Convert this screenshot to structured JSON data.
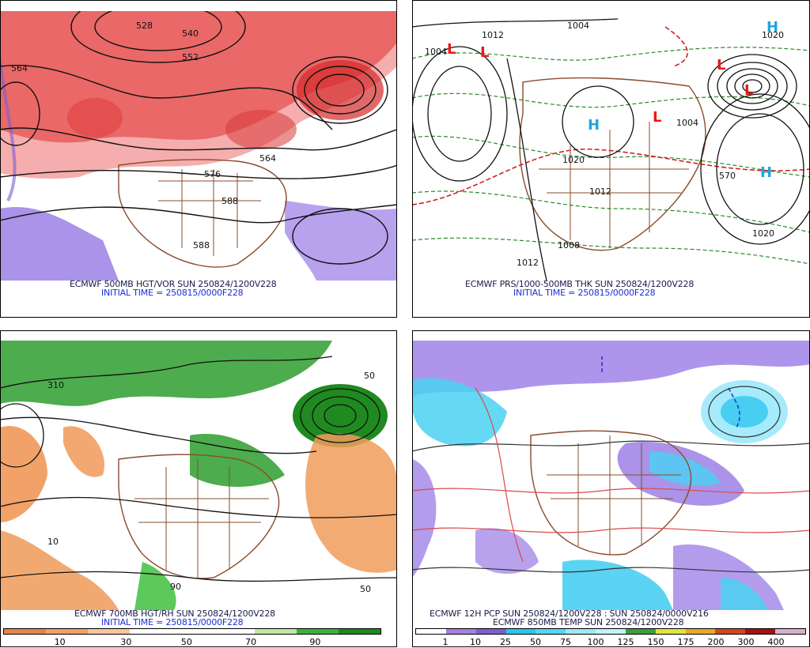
{
  "panels": [
    {
      "id": "hgt_vor",
      "caption": "ECMWF 500MB HGT/VOR SUN 250824/1200V228",
      "init": "INITIAL TIME = 250815/0000F228",
      "contour_labels": [
        "528",
        "540",
        "552",
        "564",
        "576",
        "588",
        "564",
        "564"
      ]
    },
    {
      "id": "prs_thk",
      "caption": "ECMWF PRS/1000-500MB THK SUN 250824/1200V228",
      "init": "INITIAL TIME = 250815/0000F228",
      "contour_labels": [
        "1004",
        "1004",
        "1012",
        "1020",
        "1012",
        "1020",
        "1004",
        "1012",
        "570",
        "1020",
        "1008"
      ],
      "markers": [
        "L",
        "L",
        "L",
        "L",
        "L",
        "H",
        "H",
        "H"
      ]
    },
    {
      "id": "hgt_rh",
      "caption": "ECMWF 700MB HGT/RH SUN 250824/1200V228",
      "init": "INITIAL TIME = 250815/0000F228",
      "colorbar": {
        "ticks": [
          "10",
          "30",
          "50",
          "70",
          "90"
        ],
        "colors": [
          "#e8834a",
          "#f4a066",
          "#f9c69a",
          "#ffffff",
          "#ffffff",
          "#ffffff",
          "#bde8a5",
          "#38b438",
          "#1e8a1e"
        ]
      }
    },
    {
      "id": "pcp_temp",
      "caption": "ECMWF 12H PCP SUN 250824/1200V228 : SUN 250824/0000V216",
      "caption2": "ECMWF 850MB TEMP SUN 250824/1200V228",
      "colorbar": {
        "ticks": [
          "1",
          "10",
          "25",
          "50",
          "75",
          "100",
          "125",
          "150",
          "175",
          "200",
          "300",
          "400"
        ],
        "colors": [
          "#ffffff",
          "#a77fe0",
          "#7b5fd6",
          "#29c6f0",
          "#52d8f8",
          "#9ce9fb",
          "#c2f2fd",
          "#3aa03a",
          "#e5e53a",
          "#e8a82a",
          "#d8451a",
          "#a81010",
          "#d8b0c8"
        ]
      }
    }
  ]
}
